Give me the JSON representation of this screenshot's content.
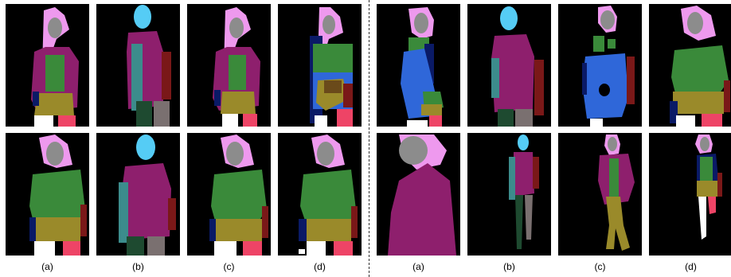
{
  "figure": {
    "left_labels": [
      "(a)",
      "(b)",
      "(c)",
      "(d)"
    ],
    "right_labels": [
      "(a)",
      "(b)",
      "(c)",
      "(d)"
    ]
  },
  "colors": {
    "background": "#000000",
    "hair": "#ee99ee",
    "face": "#8c8c8c",
    "head_cyan": "#55ccf5",
    "dress": "#8e1f6d",
    "upper_green": "#3a8a3a",
    "skirt": "#9a8a2a",
    "left_arm": "#3c8c8c",
    "right_arm": "#7a1818",
    "left_leg": "#1e4a30",
    "right_leg": "#7a7070",
    "shoe_white": "#ffffff",
    "shoe_pink": "#ee4466",
    "coat_blue": "#2f67d9",
    "navy": "#0a1a66",
    "brown": "#6a4a1a"
  }
}
